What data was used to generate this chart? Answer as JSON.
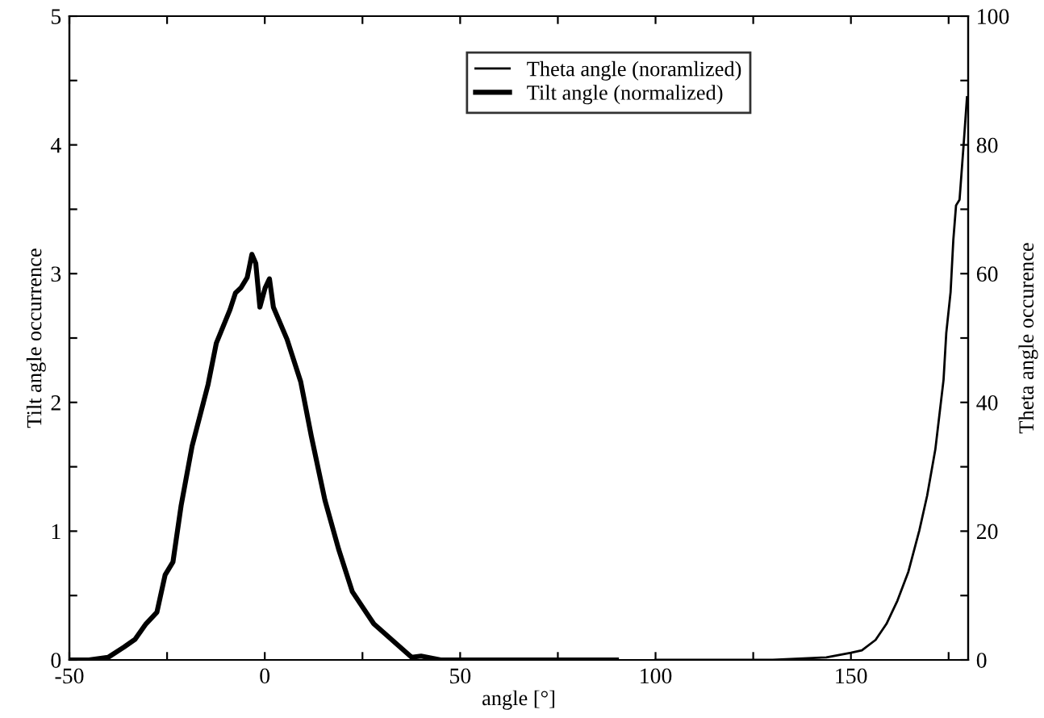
{
  "chart_data": {
    "type": "line",
    "xlabel": "angle [°]",
    "ylabel": "Tilt angle occurrence",
    "y2label": "Theta angle occurence",
    "xlim": [
      -50,
      180
    ],
    "xticks": [
      -50,
      {
        "value": -25,
        "label": null
      },
      0,
      {
        "value": 25,
        "label": null
      },
      50,
      {
        "value": 75,
        "label": null
      },
      100,
      {
        "value": 125,
        "label": null
      },
      150,
      {
        "value": 175,
        "label": null
      }
    ],
    "ylim": [
      0,
      5
    ],
    "yticks": [
      0,
      {
        "value": 0.5,
        "label": null
      },
      1,
      {
        "value": 1.5,
        "label": null
      },
      2,
      {
        "value": 2.5,
        "label": null
      },
      3,
      {
        "value": 3.5,
        "label": null
      },
      4,
      {
        "value": 4.5,
        "label": null
      },
      5
    ],
    "y2lim": [
      0,
      100
    ],
    "y2ticks": [
      0,
      {
        "value": 10,
        "label": null
      },
      20,
      {
        "value": 30,
        "label": null
      },
      40,
      {
        "value": 50,
        "label": null
      },
      60,
      {
        "value": 70,
        "label": null
      },
      80,
      {
        "value": 90,
        "label": null
      },
      100
    ],
    "legend": "top",
    "grid": false,
    "series": [
      {
        "name": "Theta angle (noramlized)",
        "color": "#000000",
        "axis": "y2",
        "x": [
          100,
          130,
          143.7,
          150,
          152.8,
          156.3,
          159.1,
          161.9,
          164.7,
          167.5,
          169.5,
          171.6,
          173.0,
          173.7,
          174.4,
          175.5,
          176.2,
          176.9,
          177.8,
          178.8,
          179.7
        ],
        "values": [
          0,
          0,
          0.4,
          1.1,
          1.5,
          3.1,
          5.6,
          9.2,
          13.7,
          20.1,
          25.5,
          32.7,
          39.9,
          43.5,
          50.8,
          57.1,
          65.2,
          70.6,
          71.5,
          79.7,
          87.4
        ]
      },
      {
        "name": "Tilt angle (normalized)",
        "color": "#000000",
        "x": [
          -50,
          -45,
          -40.1,
          -36,
          -33.2,
          -30.4,
          -27.6,
          -25.5,
          -23.5,
          -21.4,
          -18.6,
          -14.5,
          -12.4,
          -8.9,
          -7.5,
          -6.1,
          -4.5,
          -3.3,
          -2.3,
          -1.25,
          0.1,
          1.2,
          2.2,
          5.7,
          9.2,
          11.9,
          15.4,
          18.9,
          22.4,
          27.9,
          33.5,
          37.6,
          40,
          45,
          90
        ],
        "values": [
          0,
          0,
          0.02,
          0.1,
          0.16,
          0.28,
          0.37,
          0.66,
          0.76,
          1.2,
          1.66,
          2.14,
          2.46,
          2.72,
          2.85,
          2.89,
          2.97,
          3.15,
          3.08,
          2.74,
          2.89,
          2.96,
          2.74,
          2.49,
          2.16,
          1.74,
          1.24,
          0.86,
          0.53,
          0.28,
          0.13,
          0.02,
          0.03,
          0,
          0
        ]
      }
    ]
  }
}
